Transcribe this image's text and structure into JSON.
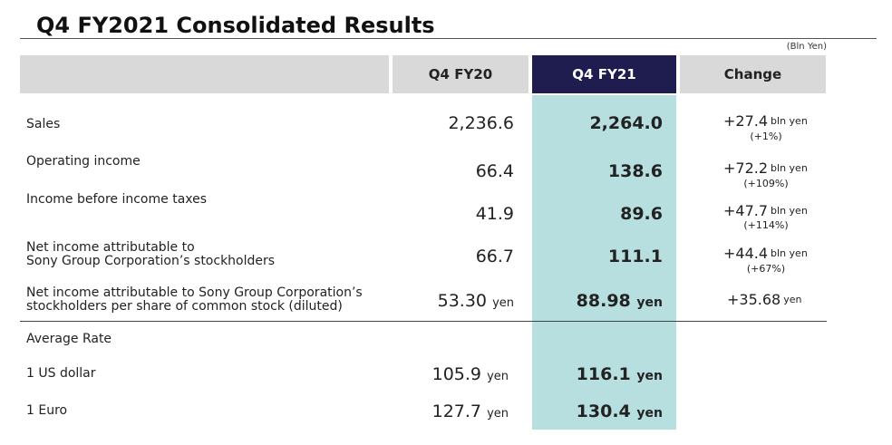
{
  "title": "Q4 FY2021  Consolidated Results",
  "unit_note": "(Bln Yen)",
  "columns": {
    "prev": "Q4 FY20",
    "curr": "Q4 FY21",
    "change": "Change"
  },
  "units": {
    "yen": "yen",
    "bln_yen": "bln yen"
  },
  "rows": [
    {
      "label": "Sales",
      "prev": "2,236.6",
      "curr": "2,264.0",
      "change": "+27.4",
      "pct": "(+1%)"
    },
    {
      "label": "Operating income",
      "prev": "66.4",
      "curr": "138.6",
      "change": "+72.2",
      "pct": "(+109%)"
    },
    {
      "label": "Income before income taxes",
      "prev": "41.9",
      "curr": "89.6",
      "change": "+47.7",
      "pct": "(+114%)"
    },
    {
      "label_line1": "Net income attributable to",
      "label_line2": "Sony Group Corporation’s stockholders",
      "prev": "66.7",
      "curr": "111.1",
      "change": "+44.4",
      "pct": "(+67%)"
    },
    {
      "label_line1": "Net income attributable to Sony Group Corporation’s",
      "label_line2": "stockholders per share of common stock (diluted)",
      "prev": "53.30",
      "curr": "88.98",
      "change": "+35.68"
    }
  ],
  "average_rate": {
    "label": "Average Rate",
    "rows": [
      {
        "label": "1 US dollar",
        "prev": "105.9",
        "curr": "116.1"
      },
      {
        "label": "1 Euro",
        "prev": "127.7",
        "curr": "130.4"
      }
    ]
  }
}
